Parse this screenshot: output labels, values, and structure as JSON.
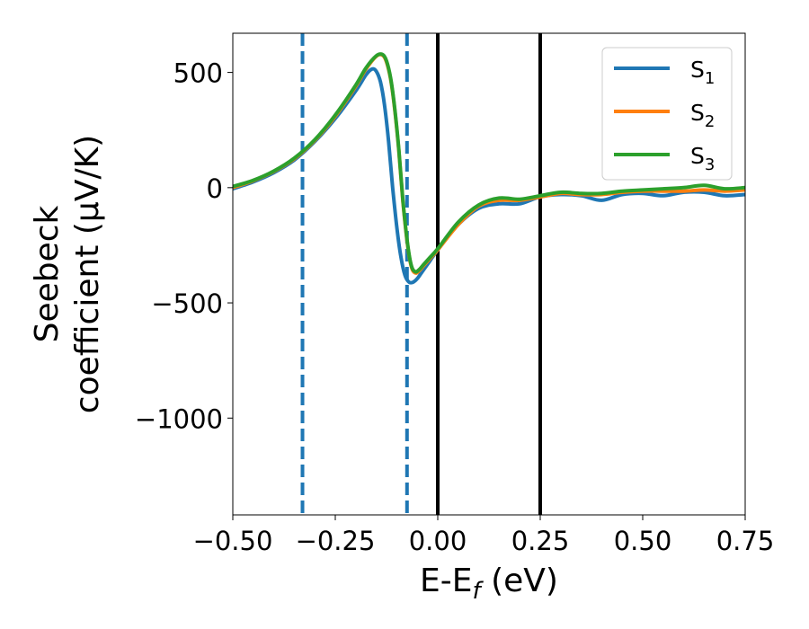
{
  "chart_data": {
    "type": "line",
    "title": "",
    "xlabel": "E-E",
    "xlabel_sub": "f",
    "xlabel_unit": " (eV)",
    "ylabel_line1": "Seebeck",
    "ylabel_line2": "coefficient  (μV/K)",
    "xlim": [
      -0.5,
      0.75
    ],
    "ylim": [
      -1420,
      670
    ],
    "xticks": [
      -0.5,
      -0.25,
      0.0,
      0.25,
      0.5,
      0.75
    ],
    "xtick_labels": [
      "−0.50",
      "−0.25",
      "0.00",
      "0.25",
      "0.50",
      "0.75"
    ],
    "yticks": [
      500,
      0,
      -500,
      -1000
    ],
    "ytick_labels": [
      "500",
      "0",
      "−500",
      "−1000"
    ],
    "grid": false,
    "legend_position": "top-right",
    "vlines": [
      {
        "x": -0.33,
        "style": "dashed",
        "color": "#1f77b4"
      },
      {
        "x": -0.075,
        "style": "dashed",
        "color": "#1f77b4"
      },
      {
        "x": 0.0,
        "style": "solid",
        "color": "#000000"
      },
      {
        "x": 0.25,
        "style": "solid",
        "color": "#000000"
      }
    ],
    "series": [
      {
        "name": "S",
        "sub": "1",
        "color": "#1f77b4",
        "x": [
          -0.5,
          -0.45,
          -0.4,
          -0.35,
          -0.3,
          -0.25,
          -0.2,
          -0.175,
          -0.16,
          -0.15,
          -0.14,
          -0.13,
          -0.12,
          -0.11,
          -0.1,
          -0.09,
          -0.08,
          -0.07,
          -0.06,
          -0.05,
          -0.04,
          -0.02,
          0.0,
          0.05,
          0.1,
          0.15,
          0.2,
          0.25,
          0.3,
          0.35,
          0.4,
          0.45,
          0.5,
          0.55,
          0.6,
          0.65,
          0.7,
          0.75
        ],
        "y": [
          -5,
          25,
          65,
          120,
          200,
          300,
          420,
          490,
          515,
          505,
          460,
          360,
          200,
          0,
          -170,
          -300,
          -380,
          -410,
          -410,
          -395,
          -370,
          -320,
          -270,
          -160,
          -90,
          -70,
          -70,
          -40,
          -30,
          -35,
          -55,
          -30,
          -25,
          -35,
          -20,
          -20,
          -35,
          -30
        ]
      },
      {
        "name": "S",
        "sub": "2",
        "color": "#ff7f0e",
        "x": [
          -0.5,
          -0.45,
          -0.4,
          -0.35,
          -0.3,
          -0.25,
          -0.2,
          -0.175,
          -0.15,
          -0.135,
          -0.125,
          -0.115,
          -0.105,
          -0.095,
          -0.085,
          -0.075,
          -0.065,
          -0.055,
          -0.045,
          -0.035,
          -0.02,
          0.0,
          0.05,
          0.1,
          0.15,
          0.2,
          0.25,
          0.3,
          0.35,
          0.4,
          0.45,
          0.5,
          0.55,
          0.6,
          0.65,
          0.7,
          0.75
        ],
        "y": [
          0,
          30,
          70,
          125,
          205,
          310,
          440,
          515,
          570,
          575,
          545,
          470,
          340,
          160,
          -60,
          -230,
          -340,
          -370,
          -360,
          -340,
          -310,
          -270,
          -160,
          -80,
          -55,
          -55,
          -40,
          -25,
          -30,
          -30,
          -20,
          -15,
          -15,
          -15,
          -10,
          -15,
          -10
        ]
      },
      {
        "name": "S",
        "sub": "3",
        "color": "#2ca02c",
        "x": [
          -0.5,
          -0.45,
          -0.4,
          -0.35,
          -0.3,
          -0.25,
          -0.2,
          -0.175,
          -0.15,
          -0.135,
          -0.125,
          -0.115,
          -0.105,
          -0.095,
          -0.085,
          -0.075,
          -0.065,
          -0.055,
          -0.045,
          -0.035,
          -0.02,
          0.0,
          0.05,
          0.1,
          0.15,
          0.2,
          0.25,
          0.3,
          0.35,
          0.4,
          0.45,
          0.5,
          0.55,
          0.6,
          0.65,
          0.7,
          0.75
        ],
        "y": [
          5,
          32,
          72,
          128,
          208,
          315,
          445,
          520,
          572,
          578,
          550,
          475,
          345,
          165,
          -55,
          -225,
          -335,
          -365,
          -355,
          -335,
          -305,
          -265,
          -150,
          -75,
          -45,
          -50,
          -35,
          -20,
          -25,
          -25,
          -15,
          -10,
          -5,
          0,
          10,
          -5,
          0
        ]
      }
    ]
  }
}
